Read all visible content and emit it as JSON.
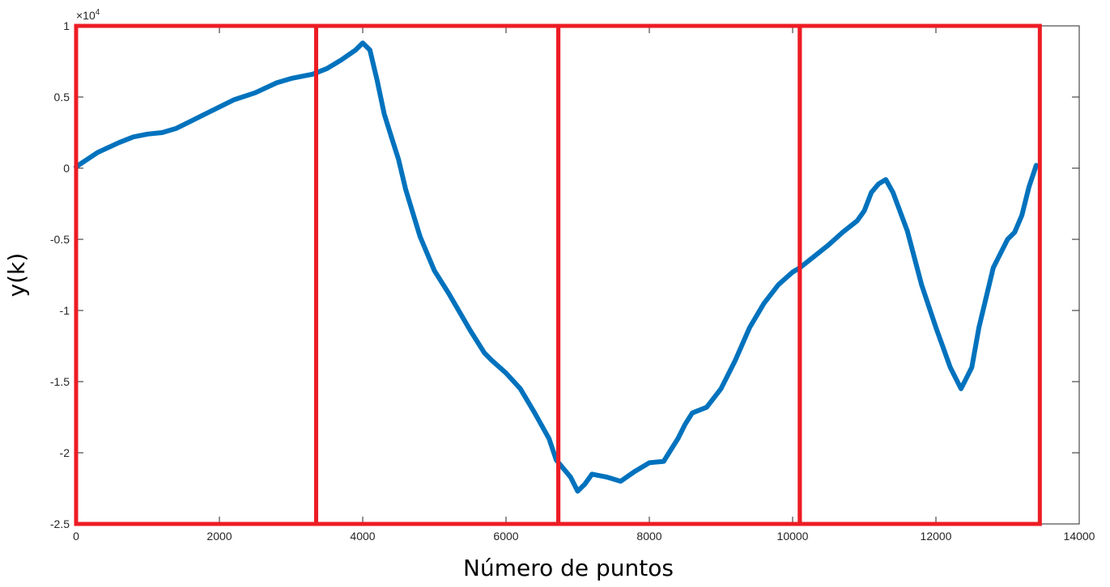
{
  "chart_data": {
    "type": "line",
    "xlabel": "Número de puntos",
    "ylabel": "y(k)",
    "exponent_label": "×10",
    "exponent_power": "4",
    "xlim": [
      0,
      14000
    ],
    "ylim": [
      -2.5,
      1
    ],
    "x_ticks": [
      0,
      2000,
      4000,
      6000,
      8000,
      10000,
      12000,
      14000
    ],
    "x_tick_labels": [
      "0",
      "2000",
      "4000",
      "6000",
      "8000",
      "10000",
      "12000",
      "14000"
    ],
    "y_ticks": [
      -2.5,
      -2,
      -1.5,
      -1,
      -0.5,
      0,
      0.5,
      1
    ],
    "y_tick_labels": [
      "-2.5",
      "-2",
      "-1.5",
      "-1",
      "-0.5",
      "0",
      "0.5",
      "1"
    ],
    "grid": false,
    "series": [
      {
        "color": "#0072BD",
        "x": [
          0,
          300,
          600,
          800,
          1000,
          1200,
          1400,
          1600,
          1800,
          2000,
          2200,
          2500,
          2800,
          3000,
          3300,
          3500,
          3700,
          3900,
          4000,
          4100,
          4200,
          4300,
          4400,
          4500,
          4600,
          4800,
          5000,
          5200,
          5500,
          5700,
          5800,
          6000,
          6200,
          6400,
          6600,
          6700,
          6900,
          7000,
          7100,
          7200,
          7400,
          7600,
          7800,
          8000,
          8200,
          8300,
          8400,
          8500,
          8600,
          8700,
          8800,
          9000,
          9200,
          9400,
          9600,
          9800,
          10000,
          10100,
          10300,
          10500,
          10700,
          10900,
          11000,
          11100,
          11200,
          11300,
          11400,
          11600,
          11800,
          12000,
          12100,
          12200,
          12350,
          12500,
          12600,
          12800,
          13000,
          13100,
          13200,
          13300,
          13400
        ],
        "y": [
          0.01,
          0.11,
          0.18,
          0.22,
          0.24,
          0.25,
          0.28,
          0.33,
          0.38,
          0.43,
          0.48,
          0.53,
          0.6,
          0.63,
          0.66,
          0.7,
          0.76,
          0.83,
          0.88,
          0.83,
          0.62,
          0.38,
          0.22,
          0.06,
          -0.15,
          -0.48,
          -0.72,
          -0.88,
          -1.14,
          -1.3,
          -1.35,
          -1.44,
          -1.55,
          -1.72,
          -1.9,
          -2.05,
          -2.17,
          -2.27,
          -2.22,
          -2.15,
          -2.17,
          -2.2,
          -2.13,
          -2.07,
          -2.06,
          -1.98,
          -1.9,
          -1.8,
          -1.72,
          -1.7,
          -1.68,
          -1.55,
          -1.35,
          -1.12,
          -0.95,
          -0.82,
          -0.73,
          -0.7,
          -0.62,
          -0.54,
          -0.45,
          -0.37,
          -0.3,
          -0.17,
          -0.11,
          -0.08,
          -0.17,
          -0.44,
          -0.82,
          -1.12,
          -1.26,
          -1.4,
          -1.55,
          -1.4,
          -1.12,
          -0.7,
          -0.5,
          -0.45,
          -0.33,
          -0.13,
          0.02
        ]
      }
    ],
    "segment_boxes": [
      {
        "x0": 0,
        "x1": 3350,
        "color": "#ED1C24"
      },
      {
        "x0": 3350,
        "x1": 6730,
        "color": "#ED1C24"
      },
      {
        "x0": 6730,
        "x1": 10100,
        "color": "#ED1C24"
      },
      {
        "x0": 10100,
        "x1": 13450,
        "color": "#ED1C24"
      }
    ]
  }
}
